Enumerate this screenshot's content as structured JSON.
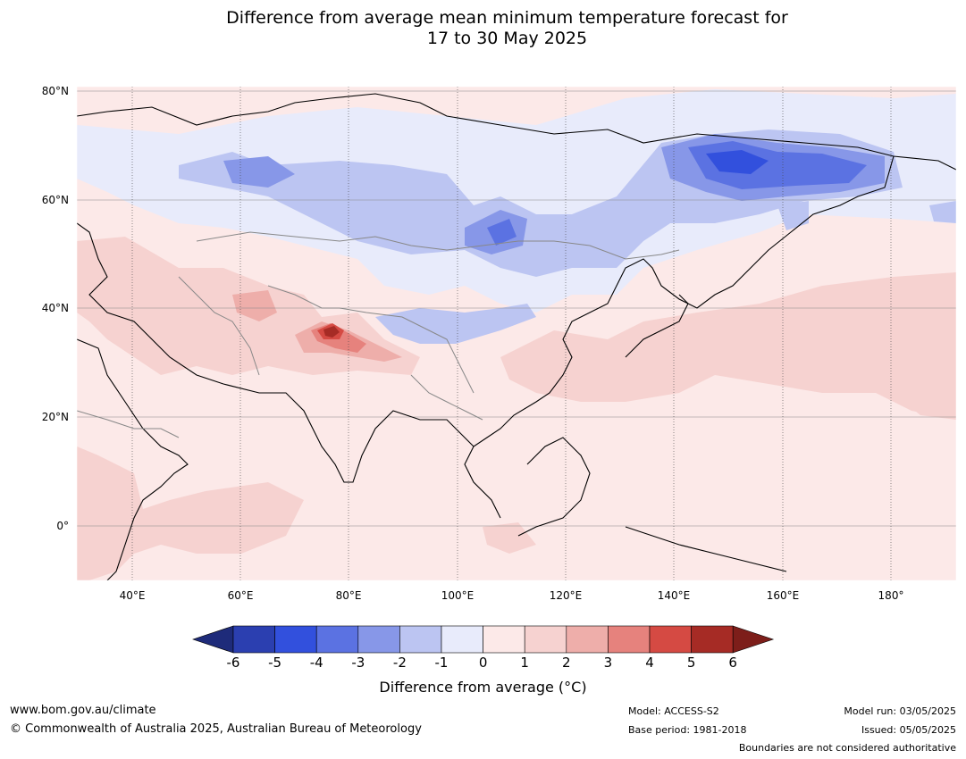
{
  "title": "Difference from average mean minimum temperature forecast for\n17 to 30 May 2025",
  "map": {
    "lat_labels": [
      "80°N",
      "60°N",
      "40°N",
      "20°N",
      "0°"
    ],
    "lon_labels": [
      "40°E",
      "60°E",
      "80°E",
      "100°E",
      "120°E",
      "140°E",
      "160°E",
      "180°"
    ]
  },
  "colorbar": {
    "ticks": [
      "-6",
      "-5",
      "-4",
      "-3",
      "-2",
      "-1",
      "0",
      "1",
      "2",
      "3",
      "4",
      "5",
      "6"
    ],
    "colors": [
      "#1e2b7a",
      "#2b3fb0",
      "#3250dd",
      "#5b72e2",
      "#8797e8",
      "#bcc5f2",
      "#e8ebfb",
      "#fce9e8",
      "#f6d2d0",
      "#eeaeaa",
      "#e6827d",
      "#d54a43",
      "#a62b25",
      "#7d1e1a"
    ],
    "label": "Difference from average (°C)"
  },
  "footer": {
    "website": "www.bom.gov.au/climate",
    "copyright": "© Commonwealth of Australia 2025, Australian Bureau of Meteorology",
    "model": "Model: ACCESS-S2",
    "base_period": "Base period: 1981-2018",
    "model_run": "Model run: 03/05/2025",
    "issued": "Issued: 05/05/2025",
    "disclaimer": "Boundaries are not considered authoritative"
  }
}
